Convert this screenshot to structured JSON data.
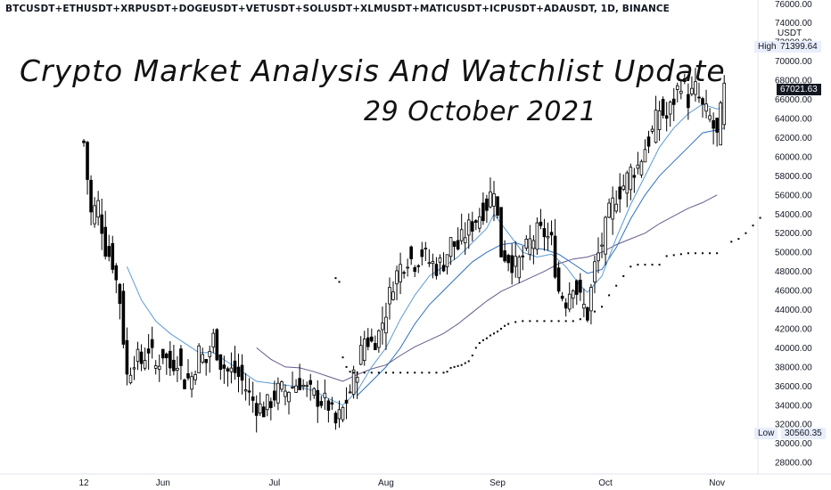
{
  "symbol_line": "BTCUSDT+ETHUSDT+XRPUSDT+DOGEUSDT+VETUSDT+SOLUSDT+XLMUSDT+MATICUSDT+ICPUSDT+ADAUSDT, 1D, BINANCE",
  "title": "Crypto Market Analysis And Watchlist Update",
  "subtitle": "29 October 2021",
  "currency": "USDT",
  "high_label": "High",
  "high_value": "71399.64",
  "current_value": "67021.63",
  "low_label": "Low",
  "low_value": "30560.35",
  "colors": {
    "candle": "#000000",
    "ma_fast": "#5b9bd5",
    "ma_mid": "#2f6fc0",
    "ma_slow": "#6a5a8c",
    "sar": "#000000",
    "tag_bg": "#e8eefb",
    "current_bg": "#131722"
  },
  "chart_data": {
    "type": "candlestick",
    "interval": "1D",
    "yaxis_ticks": [
      "28000.00",
      "30000.00",
      "32000.00",
      "34000.00",
      "36000.00",
      "38000.00",
      "40000.00",
      "42000.00",
      "44000.00",
      "46000.00",
      "48000.00",
      "50000.00",
      "52000.00",
      "54000.00",
      "56000.00",
      "58000.00",
      "60000.00",
      "62000.00",
      "64000.00",
      "66000.00",
      "68000.00",
      "70000.00",
      "72000.00",
      "74000.00",
      "76000.00"
    ],
    "xaxis_ticks": [
      "12",
      "Jun",
      "Jul",
      "Aug",
      "Sep",
      "Oct",
      "Nov"
    ],
    "ylim": [
      26800,
      76400
    ],
    "high": 71399.64,
    "low": 30560.35,
    "last": 67021.63,
    "close_path": [
      [
        0,
        61500
      ],
      [
        2,
        54000
      ],
      [
        4,
        55000
      ],
      [
        6,
        50500
      ],
      [
        8,
        49000
      ],
      [
        10,
        45000
      ],
      [
        12,
        37000
      ],
      [
        14,
        39000
      ],
      [
        16,
        38500
      ],
      [
        18,
        40000
      ],
      [
        20,
        38000
      ],
      [
        22,
        39500
      ],
      [
        24,
        38000
      ],
      [
        26,
        39000
      ],
      [
        28,
        36500
      ],
      [
        30,
        37000
      ],
      [
        32,
        39500
      ],
      [
        34,
        38500
      ],
      [
        36,
        41000
      ],
      [
        38,
        38500
      ],
      [
        40,
        37500
      ],
      [
        42,
        37500
      ],
      [
        44,
        36500
      ],
      [
        46,
        35000
      ],
      [
        48,
        34000
      ],
      [
        50,
        33500
      ],
      [
        52,
        34500
      ],
      [
        54,
        35500
      ],
      [
        56,
        35500
      ],
      [
        58,
        36000
      ],
      [
        60,
        36500
      ],
      [
        62,
        35500
      ],
      [
        64,
        35000
      ],
      [
        66,
        34500
      ],
      [
        68,
        34000
      ],
      [
        70,
        32000
      ],
      [
        72,
        33500
      ],
      [
        74,
        35500
      ],
      [
        76,
        38000
      ],
      [
        78,
        41000
      ],
      [
        80,
        40500
      ],
      [
        82,
        41500
      ],
      [
        84,
        44000
      ],
      [
        86,
        47000
      ],
      [
        88,
        48500
      ],
      [
        90,
        49500
      ],
      [
        92,
        49000
      ],
      [
        94,
        50000
      ],
      [
        96,
        49000
      ],
      [
        98,
        48500
      ],
      [
        100,
        49000
      ],
      [
        102,
        51000
      ],
      [
        104,
        50500
      ],
      [
        106,
        52000
      ],
      [
        108,
        53000
      ],
      [
        110,
        54000
      ],
      [
        112,
        55000
      ],
      [
        114,
        57000
      ],
      [
        116,
        50000
      ],
      [
        118,
        49500
      ],
      [
        120,
        48500
      ],
      [
        122,
        49500
      ],
      [
        124,
        51000
      ],
      [
        126,
        52000
      ],
      [
        128,
        52000
      ],
      [
        130,
        51000
      ],
      [
        132,
        46000
      ],
      [
        134,
        45000
      ],
      [
        136,
        47000
      ],
      [
        138,
        45000
      ],
      [
        140,
        43500
      ],
      [
        142,
        48500
      ],
      [
        144,
        51000
      ],
      [
        146,
        54000
      ],
      [
        148,
        56000
      ],
      [
        150,
        57000
      ],
      [
        152,
        58500
      ],
      [
        154,
        59000
      ],
      [
        156,
        61000
      ],
      [
        158,
        62500
      ],
      [
        160,
        65000
      ],
      [
        162,
        64000
      ],
      [
        164,
        66000
      ],
      [
        166,
        68000
      ],
      [
        168,
        66000
      ],
      [
        170,
        67000
      ],
      [
        172,
        65000
      ],
      [
        174,
        64000
      ],
      [
        176,
        62000
      ],
      [
        178,
        67000
      ]
    ],
    "moving_averages": [
      {
        "name": "fast",
        "points": [
          [
            12,
            48500
          ],
          [
            16,
            45000
          ],
          [
            20,
            42800
          ],
          [
            24,
            41500
          ],
          [
            28,
            40500
          ],
          [
            32,
            39500
          ],
          [
            36,
            39500
          ],
          [
            40,
            38500
          ],
          [
            44,
            37500
          ],
          [
            48,
            36500
          ],
          [
            52,
            36300
          ],
          [
            56,
            36100
          ],
          [
            60,
            35900
          ],
          [
            64,
            35500
          ],
          [
            68,
            34700
          ],
          [
            72,
            34000
          ],
          [
            76,
            35500
          ],
          [
            80,
            38000
          ],
          [
            84,
            40000
          ],
          [
            88,
            43000
          ],
          [
            92,
            45500
          ],
          [
            96,
            47500
          ],
          [
            100,
            48500
          ],
          [
            104,
            49500
          ],
          [
            108,
            51000
          ],
          [
            112,
            52500
          ],
          [
            114,
            54000
          ],
          [
            118,
            52000
          ],
          [
            122,
            50000
          ],
          [
            126,
            49500
          ],
          [
            130,
            49800
          ],
          [
            134,
            48500
          ],
          [
            138,
            46500
          ],
          [
            140,
            45800
          ],
          [
            144,
            47500
          ],
          [
            148,
            51500
          ],
          [
            152,
            55000
          ],
          [
            156,
            58000
          ],
          [
            160,
            61000
          ],
          [
            164,
            63000
          ],
          [
            168,
            64500
          ],
          [
            172,
            65500
          ],
          [
            176,
            65000
          ],
          [
            178,
            65200
          ]
        ]
      },
      {
        "name": "mid",
        "points": [
          [
            76,
            35000
          ],
          [
            80,
            36500
          ],
          [
            84,
            38000
          ],
          [
            88,
            40000
          ],
          [
            92,
            42500
          ],
          [
            96,
            44500
          ],
          [
            100,
            46000
          ],
          [
            104,
            47500
          ],
          [
            108,
            49000
          ],
          [
            112,
            50000
          ],
          [
            116,
            50800
          ],
          [
            120,
            51000
          ],
          [
            124,
            50500
          ],
          [
            128,
            50300
          ],
          [
            132,
            49800
          ],
          [
            136,
            48800
          ],
          [
            140,
            47800
          ],
          [
            144,
            48200
          ],
          [
            148,
            50500
          ],
          [
            152,
            53500
          ],
          [
            156,
            56000
          ],
          [
            160,
            58000
          ],
          [
            164,
            59500
          ],
          [
            168,
            61000
          ],
          [
            172,
            62500
          ],
          [
            176,
            62800
          ],
          [
            178,
            63000
          ]
        ]
      },
      {
        "name": "slow",
        "points": [
          [
            48,
            40000
          ],
          [
            52,
            38800
          ],
          [
            56,
            38000
          ],
          [
            60,
            37900
          ],
          [
            64,
            37500
          ],
          [
            68,
            37000
          ],
          [
            72,
            36500
          ],
          [
            76,
            37200
          ],
          [
            80,
            37800
          ],
          [
            84,
            38200
          ],
          [
            88,
            39200
          ],
          [
            92,
            40100
          ],
          [
            96,
            40800
          ],
          [
            100,
            41500
          ],
          [
            104,
            42500
          ],
          [
            108,
            43700
          ],
          [
            112,
            44900
          ],
          [
            116,
            45900
          ],
          [
            120,
            46600
          ],
          [
            124,
            47300
          ],
          [
            128,
            48000
          ],
          [
            132,
            48800
          ],
          [
            136,
            49300
          ],
          [
            140,
            49500
          ],
          [
            144,
            50000
          ],
          [
            148,
            50800
          ],
          [
            152,
            51400
          ],
          [
            156,
            52000
          ],
          [
            160,
            53000
          ],
          [
            164,
            53800
          ],
          [
            168,
            54600
          ],
          [
            172,
            55200
          ],
          [
            176,
            56000
          ]
        ]
      }
    ],
    "parabolic_sar": [
      [
        70,
        47300
      ],
      [
        71,
        46900
      ],
      [
        72,
        39000
      ],
      [
        73,
        38000
      ],
      [
        74,
        37500
      ],
      [
        75,
        37400
      ],
      [
        76,
        37400
      ],
      [
        78,
        37400
      ],
      [
        80,
        37400
      ],
      [
        82,
        37400
      ],
      [
        84,
        37400
      ],
      [
        86,
        37400
      ],
      [
        88,
        37400
      ],
      [
        90,
        37400
      ],
      [
        92,
        37400
      ],
      [
        94,
        37400
      ],
      [
        96,
        37400
      ],
      [
        98,
        37400
      ],
      [
        100,
        37400
      ],
      [
        101,
        37500
      ],
      [
        102,
        37900
      ],
      [
        103,
        38000
      ],
      [
        104,
        38100
      ],
      [
        105,
        38200
      ],
      [
        106,
        38400
      ],
      [
        107,
        38600
      ],
      [
        108,
        39200
      ],
      [
        109,
        40000
      ],
      [
        110,
        40500
      ],
      [
        111,
        40800
      ],
      [
        112,
        41000
      ],
      [
        113,
        41300
      ],
      [
        114,
        41500
      ],
      [
        115,
        41700
      ],
      [
        116,
        42000
      ],
      [
        117,
        42300
      ],
      [
        118,
        42500
      ],
      [
        120,
        42700
      ],
      [
        122,
        42800
      ],
      [
        124,
        42800
      ],
      [
        126,
        42800
      ],
      [
        128,
        42800
      ],
      [
        130,
        42800
      ],
      [
        132,
        42800
      ],
      [
        134,
        42800
      ],
      [
        136,
        42800
      ],
      [
        138,
        43000
      ],
      [
        140,
        43400
      ],
      [
        142,
        43800
      ],
      [
        144,
        44300
      ],
      [
        146,
        45500
      ],
      [
        148,
        46500
      ],
      [
        150,
        47500
      ],
      [
        152,
        48500
      ],
      [
        154,
        48700
      ],
      [
        156,
        48700
      ],
      [
        158,
        48700
      ],
      [
        160,
        48700
      ],
      [
        162,
        49600
      ],
      [
        164,
        49700
      ],
      [
        166,
        49800
      ],
      [
        168,
        49900
      ],
      [
        170,
        49900
      ],
      [
        172,
        49900
      ],
      [
        174,
        49900
      ],
      [
        176,
        49900
      ],
      [
        180,
        51100
      ],
      [
        182,
        51400
      ],
      [
        184,
        52000
      ],
      [
        186,
        52800
      ],
      [
        188,
        53600
      ]
    ]
  }
}
